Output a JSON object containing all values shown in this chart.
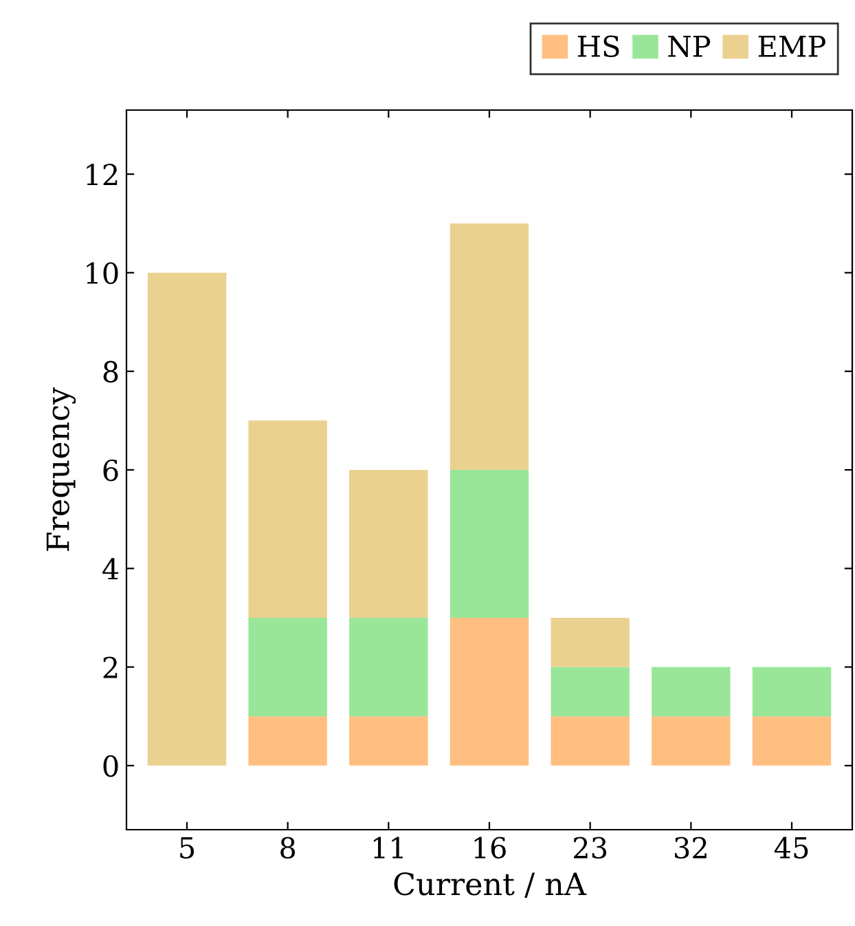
{
  "chart_data": {
    "type": "bar",
    "stacked": true,
    "xlabel": "Current / nA",
    "ylabel": "Frequency",
    "categories": [
      "5",
      "8",
      "11",
      "16",
      "23",
      "32",
      "45"
    ],
    "series": [
      {
        "name": "HS",
        "color": "#ffbf80",
        "values": [
          0,
          1,
          1,
          3,
          1,
          1,
          1
        ]
      },
      {
        "name": "NP",
        "color": "#99e699",
        "values": [
          0,
          2,
          2,
          3,
          1,
          1,
          1
        ]
      },
      {
        "name": "EMP",
        "color": "#ebd190",
        "values": [
          10,
          4,
          3,
          5,
          1,
          0,
          0
        ]
      }
    ],
    "ylim": [
      -1.3,
      13.3
    ],
    "yticks": [
      0,
      2,
      4,
      6,
      8,
      10,
      12
    ],
    "grid": false,
    "legend": "top right"
  }
}
